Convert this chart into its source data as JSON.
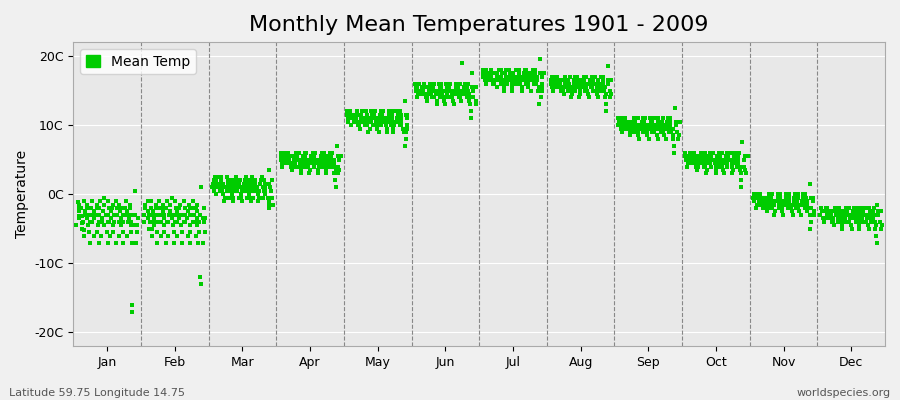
{
  "title": "Monthly Mean Temperatures 1901 - 2009",
  "ylabel": "Temperature",
  "xlabel_bottom_left": "Latitude 59.75 Longitude 14.75",
  "xlabel_bottom_right": "worldspecies.org",
  "ytick_labels": [
    "20C",
    "10C",
    "0C",
    "-10C",
    "-20C"
  ],
  "ytick_values": [
    20,
    10,
    0,
    -10,
    -20
  ],
  "ylim": [
    -22,
    22
  ],
  "months": [
    "Jan",
    "Feb",
    "Mar",
    "Apr",
    "May",
    "Jun",
    "Jul",
    "Aug",
    "Sep",
    "Oct",
    "Nov",
    "Dec"
  ],
  "dot_color": "#00CC00",
  "dot_size": 8,
  "background_color": "#f0f0f0",
  "plot_bg_color": "#e8e8e8",
  "legend_label": "Mean Temp",
  "title_fontsize": 16,
  "axis_fontsize": 10,
  "tick_fontsize": 9,
  "mean_temps_by_month": {
    "Jan": [
      -4.5,
      -3.2,
      -2.1,
      -1.5,
      -1.2,
      -2.5,
      -3.5,
      -5.0,
      -4.1,
      -3.2,
      -2.0,
      -1.0,
      -3.0,
      -4.0,
      -5.2,
      -6.0,
      -2.5,
      -3.5,
      -1.5,
      -2.0,
      -4.5,
      -3.0,
      -5.5,
      -7.0,
      -4.0,
      -3.0,
      -2.0,
      -1.0,
      -3.0,
      -4.0,
      -6.0,
      -2.5,
      -3.5,
      -1.5,
      -2.0,
      -4.5,
      -3.0,
      -5.5,
      -7.0,
      -4.0,
      -2.0,
      -1.0,
      -3.0,
      -4.0,
      -6.0,
      -2.5,
      -3.5,
      -1.5,
      -0.5,
      -4.5,
      -3.0,
      -5.5,
      -7.0,
      -4.0,
      -3.0,
      -2.0,
      -1.0,
      -3.0,
      -4.0,
      -6.0,
      -2.5,
      -3.5,
      -1.5,
      -2.0,
      -4.5,
      -3.0,
      -5.5,
      -7.0,
      -4.0,
      -3.0,
      -2.0,
      -1.0,
      -3.0,
      -4.0,
      -6.0,
      -2.5,
      -3.5,
      -1.5,
      -2.0,
      -4.5,
      -3.0,
      -5.5,
      -7.0,
      -4.0,
      -3.0,
      -2.0,
      -1.0,
      -3.0,
      -4.0,
      -6.0,
      -2.5,
      -3.5,
      -1.5,
      -2.0,
      -4.5,
      -3.0,
      -5.5,
      -7.0,
      -4.0,
      -17.0,
      -16.0,
      0.5,
      -4.5,
      -3.0,
      -4.5,
      -7.0,
      -5.5,
      -3.5
    ],
    "Feb": [
      -4.0,
      -3.0,
      -2.0,
      -1.5,
      -1.0,
      -2.5,
      -3.5,
      -5.0,
      -4.0,
      -3.0,
      -2.0,
      -1.0,
      -3.0,
      -4.0,
      -5.0,
      -6.0,
      -2.5,
      -3.5,
      -1.5,
      -2.0,
      -4.5,
      -3.0,
      -5.5,
      -7.0,
      -4.0,
      -3.0,
      -2.0,
      -1.0,
      -3.0,
      -4.0,
      -6.0,
      -2.5,
      -3.5,
      -1.5,
      -2.0,
      -4.5,
      -3.0,
      -5.5,
      -7.0,
      -4.0,
      -2.0,
      -1.0,
      -3.0,
      -4.0,
      -6.0,
      -2.5,
      -3.5,
      -1.5,
      -0.5,
      -4.5,
      -3.0,
      -5.5,
      -7.0,
      -4.0,
      -3.0,
      -2.0,
      -1.0,
      -3.0,
      -4.0,
      -6.0,
      -2.5,
      -3.5,
      -1.5,
      -2.0,
      -4.5,
      -3.0,
      -5.5,
      -7.0,
      -4.0,
      -3.0,
      -2.0,
      -1.0,
      -3.0,
      -4.0,
      -6.0,
      -2.5,
      -3.5,
      -1.5,
      -2.0,
      -4.5,
      -3.0,
      -5.5,
      -7.0,
      -4.0,
      -3.0,
      -2.0,
      -1.0,
      -3.0,
      -4.0,
      -6.0,
      -2.5,
      -3.5,
      -1.5,
      -2.0,
      -4.5,
      -3.0,
      -5.5,
      -7.0,
      -4.0,
      -13.0,
      -12.0,
      1.0,
      -3.5,
      -2.0,
      -4.0,
      -7.0,
      -5.5,
      -3.5
    ],
    "Mar": [
      1.0,
      1.5,
      2.0,
      2.5,
      1.5,
      1.0,
      0.5,
      0.0,
      1.0,
      2.0,
      1.5,
      2.5,
      0.5,
      1.0,
      2.0,
      2.5,
      1.5,
      0.5,
      2.0,
      1.0,
      0.0,
      1.5,
      -0.5,
      -1.0,
      0.5,
      1.5,
      2.0,
      2.5,
      1.0,
      0.5,
      -0.5,
      1.0,
      1.5,
      2.0,
      1.0,
      0.0,
      0.5,
      -0.5,
      -1.0,
      0.5,
      1.5,
      2.0,
      2.5,
      1.0,
      0.5,
      -0.5,
      1.0,
      1.5,
      2.0,
      1.0,
      0.0,
      0.5,
      -0.5,
      -1.0,
      0.5,
      1.5,
      2.0,
      2.5,
      1.0,
      0.5,
      -0.5,
      1.0,
      1.5,
      2.0,
      1.0,
      0.0,
      0.5,
      -0.5,
      -1.0,
      0.5,
      1.5,
      2.0,
      2.5,
      1.0,
      0.5,
      -0.5,
      1.0,
      1.5,
      2.0,
      1.0,
      0.0,
      0.5,
      -0.5,
      -1.0,
      0.5,
      1.5,
      2.0,
      2.5,
      1.0,
      0.5,
      -0.5,
      1.0,
      1.5,
      2.0,
      1.0,
      0.0,
      0.5,
      -0.5,
      -1.0,
      -1.5,
      -2.0,
      3.5,
      1.5,
      1.0,
      0.5,
      -0.5,
      -1.5,
      2.0
    ],
    "Apr": [
      5.0,
      5.5,
      6.0,
      5.5,
      4.5,
      4.0,
      5.5,
      6.0,
      5.0,
      4.5,
      5.0,
      5.5,
      4.5,
      5.0,
      6.0,
      5.5,
      4.5,
      5.0,
      5.5,
      4.5,
      4.0,
      5.5,
      4.0,
      3.5,
      4.5,
      5.0,
      5.5,
      6.0,
      5.0,
      4.5,
      4.0,
      5.0,
      5.5,
      6.0,
      5.0,
      4.5,
      4.0,
      3.5,
      3.0,
      4.5,
      5.0,
      5.5,
      6.0,
      5.0,
      4.5,
      4.0,
      5.0,
      5.5,
      6.0,
      5.0,
      4.5,
      4.0,
      3.5,
      3.0,
      4.5,
      5.0,
      5.5,
      6.0,
      5.0,
      4.5,
      4.0,
      5.0,
      5.5,
      6.0,
      5.0,
      4.5,
      4.0,
      3.5,
      3.0,
      4.5,
      5.0,
      5.5,
      6.0,
      5.0,
      4.5,
      4.0,
      5.0,
      5.5,
      6.0,
      5.0,
      4.5,
      4.0,
      3.5,
      3.0,
      4.5,
      5.0,
      5.5,
      6.0,
      5.0,
      4.5,
      4.0,
      5.0,
      5.5,
      6.0,
      5.0,
      4.5,
      4.0,
      3.5,
      3.0,
      1.0,
      2.0,
      7.0,
      5.5,
      5.0,
      4.0,
      3.0,
      3.5,
      5.5
    ],
    "May": [
      11.0,
      11.5,
      12.0,
      11.5,
      10.5,
      10.0,
      11.5,
      12.0,
      11.0,
      10.5,
      11.0,
      11.5,
      10.5,
      11.0,
      12.0,
      11.5,
      10.5,
      11.0,
      11.5,
      10.5,
      10.0,
      11.5,
      10.0,
      9.5,
      10.5,
      11.0,
      11.5,
      12.0,
      11.0,
      10.5,
      10.0,
      11.0,
      11.5,
      12.0,
      11.0,
      10.5,
      10.0,
      9.5,
      9.0,
      10.5,
      11.0,
      11.5,
      12.0,
      11.0,
      10.5,
      10.0,
      11.0,
      11.5,
      12.0,
      11.0,
      10.5,
      10.0,
      9.5,
      9.0,
      10.5,
      11.0,
      11.5,
      12.0,
      11.0,
      10.5,
      10.0,
      11.0,
      11.5,
      12.0,
      11.0,
      10.5,
      10.0,
      9.5,
      9.0,
      10.5,
      11.0,
      11.5,
      12.0,
      11.0,
      10.5,
      10.0,
      11.0,
      11.5,
      12.0,
      11.0,
      10.5,
      10.0,
      9.5,
      9.0,
      10.5,
      11.0,
      11.5,
      12.0,
      11.0,
      10.5,
      10.0,
      11.0,
      11.5,
      12.0,
      11.0,
      10.5,
      10.0,
      9.5,
      9.0,
      7.0,
      8.0,
      13.5,
      11.5,
      11.0,
      10.0,
      9.0,
      9.5,
      11.5
    ],
    "Jun": [
      15.0,
      15.5,
      16.0,
      15.5,
      14.5,
      14.0,
      15.5,
      16.0,
      15.0,
      14.5,
      15.0,
      15.5,
      14.5,
      15.0,
      16.0,
      15.5,
      14.5,
      15.0,
      15.5,
      14.5,
      14.0,
      15.5,
      14.0,
      13.5,
      14.5,
      15.0,
      15.5,
      16.0,
      15.0,
      14.5,
      14.0,
      15.0,
      15.5,
      16.0,
      15.0,
      14.5,
      14.0,
      13.5,
      13.0,
      14.5,
      15.0,
      15.5,
      16.0,
      15.0,
      14.5,
      14.0,
      15.0,
      15.5,
      16.0,
      15.0,
      14.5,
      14.0,
      13.5,
      13.0,
      14.5,
      15.0,
      15.5,
      16.0,
      15.0,
      14.5,
      14.0,
      15.0,
      15.5,
      16.0,
      15.0,
      14.5,
      14.0,
      13.5,
      13.0,
      14.5,
      15.0,
      15.5,
      16.0,
      15.0,
      14.5,
      14.0,
      15.0,
      15.5,
      16.0,
      15.0,
      14.5,
      14.0,
      13.5,
      19.0,
      14.5,
      15.0,
      15.5,
      16.0,
      15.0,
      14.5,
      14.0,
      15.0,
      15.5,
      16.0,
      15.0,
      14.5,
      14.0,
      13.5,
      13.0,
      11.0,
      12.0,
      17.5,
      15.5,
      15.0,
      14.0,
      13.0,
      13.5,
      15.5
    ],
    "Jul": [
      17.0,
      17.5,
      18.0,
      17.5,
      16.5,
      16.0,
      17.5,
      18.0,
      17.0,
      16.5,
      17.0,
      17.5,
      16.5,
      17.0,
      18.0,
      17.5,
      16.5,
      17.0,
      17.5,
      16.5,
      16.0,
      17.5,
      16.0,
      15.5,
      16.5,
      17.0,
      17.5,
      18.0,
      17.0,
      16.5,
      16.0,
      17.0,
      17.5,
      18.0,
      17.0,
      16.5,
      16.0,
      15.5,
      15.0,
      16.5,
      17.0,
      17.5,
      18.0,
      17.0,
      16.5,
      16.0,
      17.0,
      17.5,
      18.0,
      17.0,
      16.5,
      16.0,
      15.5,
      15.0,
      16.5,
      17.0,
      17.5,
      18.0,
      17.0,
      16.5,
      16.0,
      17.0,
      17.5,
      18.0,
      17.0,
      16.5,
      16.0,
      15.5,
      15.0,
      16.5,
      17.0,
      17.5,
      18.0,
      17.0,
      16.5,
      16.0,
      17.0,
      17.5,
      18.0,
      17.0,
      16.5,
      16.0,
      15.5,
      15.0,
      16.5,
      17.0,
      17.5,
      18.0,
      17.0,
      16.5,
      16.0,
      17.0,
      17.5,
      18.0,
      17.0,
      16.5,
      16.0,
      15.5,
      15.0,
      13.0,
      14.0,
      19.5,
      17.5,
      17.0,
      16.0,
      15.0,
      15.5,
      17.5
    ],
    "Aug": [
      16.0,
      16.5,
      17.0,
      16.5,
      15.5,
      15.0,
      16.5,
      17.0,
      16.0,
      15.5,
      16.0,
      16.5,
      15.5,
      16.0,
      17.0,
      16.5,
      15.5,
      16.0,
      16.5,
      15.5,
      15.0,
      16.5,
      15.0,
      14.5,
      15.5,
      16.0,
      16.5,
      17.0,
      16.0,
      15.5,
      15.0,
      16.0,
      16.5,
      17.0,
      16.0,
      15.5,
      15.0,
      14.5,
      14.0,
      15.5,
      16.0,
      16.5,
      17.0,
      16.0,
      15.5,
      15.0,
      16.0,
      16.5,
      17.0,
      16.0,
      15.5,
      15.0,
      14.5,
      14.0,
      15.5,
      16.0,
      16.5,
      17.0,
      16.0,
      15.5,
      15.0,
      16.0,
      16.5,
      17.0,
      16.0,
      15.5,
      15.0,
      14.5,
      14.0,
      15.5,
      16.0,
      16.5,
      17.0,
      16.0,
      15.5,
      15.0,
      16.0,
      16.5,
      17.0,
      16.0,
      15.5,
      15.0,
      14.5,
      14.0,
      15.5,
      16.0,
      16.5,
      17.0,
      16.0,
      15.5,
      15.0,
      16.0,
      16.5,
      17.0,
      16.0,
      15.5,
      15.0,
      14.5,
      14.0,
      12.0,
      13.0,
      18.5,
      16.5,
      16.0,
      15.0,
      14.0,
      14.5,
      16.5
    ],
    "Sep": [
      10.0,
      10.5,
      11.0,
      10.5,
      9.5,
      9.0,
      10.5,
      11.0,
      10.0,
      9.5,
      10.0,
      10.5,
      9.5,
      10.0,
      11.0,
      10.5,
      9.5,
      10.0,
      10.5,
      9.5,
      9.0,
      10.5,
      9.0,
      8.5,
      9.5,
      10.0,
      10.5,
      11.0,
      10.0,
      9.5,
      9.0,
      10.0,
      10.5,
      11.0,
      10.0,
      9.5,
      9.0,
      8.5,
      8.0,
      9.5,
      10.0,
      10.5,
      11.0,
      10.0,
      9.5,
      9.0,
      10.0,
      10.5,
      11.0,
      10.0,
      9.5,
      9.0,
      8.5,
      8.0,
      9.5,
      10.0,
      10.5,
      11.0,
      10.0,
      9.5,
      9.0,
      10.0,
      10.5,
      11.0,
      10.0,
      9.5,
      9.0,
      8.5,
      8.0,
      9.5,
      10.0,
      10.5,
      11.0,
      10.0,
      9.5,
      9.0,
      10.0,
      10.5,
      11.0,
      10.0,
      9.5,
      9.0,
      8.5,
      8.0,
      9.5,
      10.0,
      10.5,
      11.0,
      10.0,
      9.5,
      9.0,
      10.0,
      10.5,
      11.0,
      10.0,
      9.5,
      9.0,
      8.5,
      8.0,
      6.0,
      7.0,
      12.5,
      10.5,
      10.0,
      9.0,
      8.0,
      8.5,
      10.5
    ],
    "Oct": [
      5.0,
      5.5,
      6.0,
      5.5,
      4.5,
      4.0,
      5.5,
      6.0,
      5.0,
      4.5,
      5.0,
      5.5,
      4.5,
      5.0,
      6.0,
      5.5,
      4.5,
      5.0,
      5.5,
      4.5,
      4.0,
      5.5,
      4.0,
      3.5,
      4.5,
      5.0,
      5.5,
      6.0,
      5.0,
      4.5,
      4.0,
      5.0,
      5.5,
      6.0,
      5.0,
      4.5,
      4.0,
      3.5,
      3.0,
      4.5,
      5.0,
      5.5,
      6.0,
      5.0,
      4.5,
      4.0,
      5.0,
      5.5,
      6.0,
      5.0,
      4.5,
      4.0,
      3.5,
      3.0,
      4.5,
      5.0,
      5.5,
      6.0,
      5.0,
      4.5,
      4.0,
      5.0,
      5.5,
      6.0,
      5.0,
      4.5,
      4.0,
      3.5,
      3.0,
      4.5,
      5.0,
      5.5,
      6.0,
      5.0,
      4.5,
      4.0,
      5.0,
      5.5,
      6.0,
      5.0,
      4.5,
      4.0,
      3.5,
      3.0,
      4.5,
      5.0,
      5.5,
      6.0,
      5.0,
      4.5,
      4.0,
      5.0,
      5.5,
      6.0,
      5.0,
      4.5,
      4.0,
      3.5,
      3.0,
      1.0,
      2.0,
      7.5,
      5.5,
      5.0,
      4.0,
      3.0,
      3.5,
      5.5
    ],
    "Nov": [
      -1.0,
      -0.5,
      0.0,
      -0.5,
      -1.5,
      -2.0,
      -0.5,
      0.0,
      -1.0,
      -1.5,
      -1.0,
      -0.5,
      -1.5,
      -1.0,
      0.0,
      -0.5,
      -1.5,
      -1.0,
      -0.5,
      -1.5,
      -2.0,
      -0.5,
      -2.0,
      -2.5,
      -1.5,
      -1.0,
      -0.5,
      0.0,
      -1.0,
      -1.5,
      -2.0,
      -1.0,
      -0.5,
      0.0,
      -1.0,
      -1.5,
      -2.0,
      -2.5,
      -3.0,
      -1.5,
      -1.0,
      -0.5,
      0.0,
      -1.0,
      -1.5,
      -2.0,
      -1.0,
      -0.5,
      0.0,
      -1.0,
      -1.5,
      -2.0,
      -2.5,
      -3.0,
      -1.5,
      -1.0,
      -0.5,
      0.0,
      -1.0,
      -1.5,
      -2.0,
      -1.0,
      -0.5,
      0.0,
      -1.0,
      -1.5,
      -2.0,
      -2.5,
      -3.0,
      -1.5,
      -1.0,
      -0.5,
      0.0,
      -1.0,
      -1.5,
      -2.0,
      -1.0,
      -0.5,
      0.0,
      -1.0,
      -1.5,
      -2.0,
      -2.5,
      -3.0,
      -1.5,
      -1.0,
      -0.5,
      0.0,
      -1.0,
      -1.5,
      -2.0,
      -1.0,
      -0.5,
      0.0,
      -1.0,
      -1.5,
      -2.0,
      -2.5,
      -3.0,
      -5.0,
      -4.0,
      1.5,
      -0.5,
      -1.0,
      -2.0,
      -3.0,
      -2.5,
      -0.5
    ],
    "Dec": [
      -3.0,
      -2.5,
      -2.0,
      -2.5,
      -3.5,
      -4.0,
      -2.5,
      -2.0,
      -3.0,
      -3.5,
      -3.0,
      -2.5,
      -3.5,
      -3.0,
      -2.0,
      -2.5,
      -3.5,
      -3.0,
      -2.5,
      -3.5,
      -4.0,
      -2.5,
      -4.0,
      -4.5,
      -3.5,
      -3.0,
      -2.5,
      -2.0,
      -3.0,
      -3.5,
      -4.0,
      -3.0,
      -2.5,
      -2.0,
      -3.0,
      -3.5,
      -4.0,
      -4.5,
      -5.0,
      -3.5,
      -3.0,
      -2.5,
      -2.0,
      -3.0,
      -3.5,
      -4.0,
      -3.0,
      -2.5,
      -2.0,
      -3.0,
      -3.5,
      -4.0,
      -4.5,
      -5.0,
      -3.5,
      -3.0,
      -2.5,
      -2.0,
      -3.0,
      -3.5,
      -4.0,
      -3.0,
      -2.5,
      -2.0,
      -3.0,
      -3.5,
      -4.0,
      -4.5,
      -5.0,
      -3.5,
      -3.0,
      -2.5,
      -2.0,
      -3.0,
      -3.5,
      -4.0,
      -3.0,
      -2.5,
      -2.0,
      -3.0,
      -3.5,
      -4.0,
      -4.5,
      -5.0,
      -3.5,
      -3.0,
      -2.5,
      -2.0,
      -3.0,
      -3.5,
      -4.0,
      -3.0,
      -2.5,
      -2.0,
      -3.0,
      -3.5,
      -4.0,
      -4.5,
      -5.0,
      -7.0,
      -6.0,
      -1.5,
      -2.5,
      -3.0,
      -4.0,
      -5.0,
      -4.5,
      -2.5
    ]
  }
}
